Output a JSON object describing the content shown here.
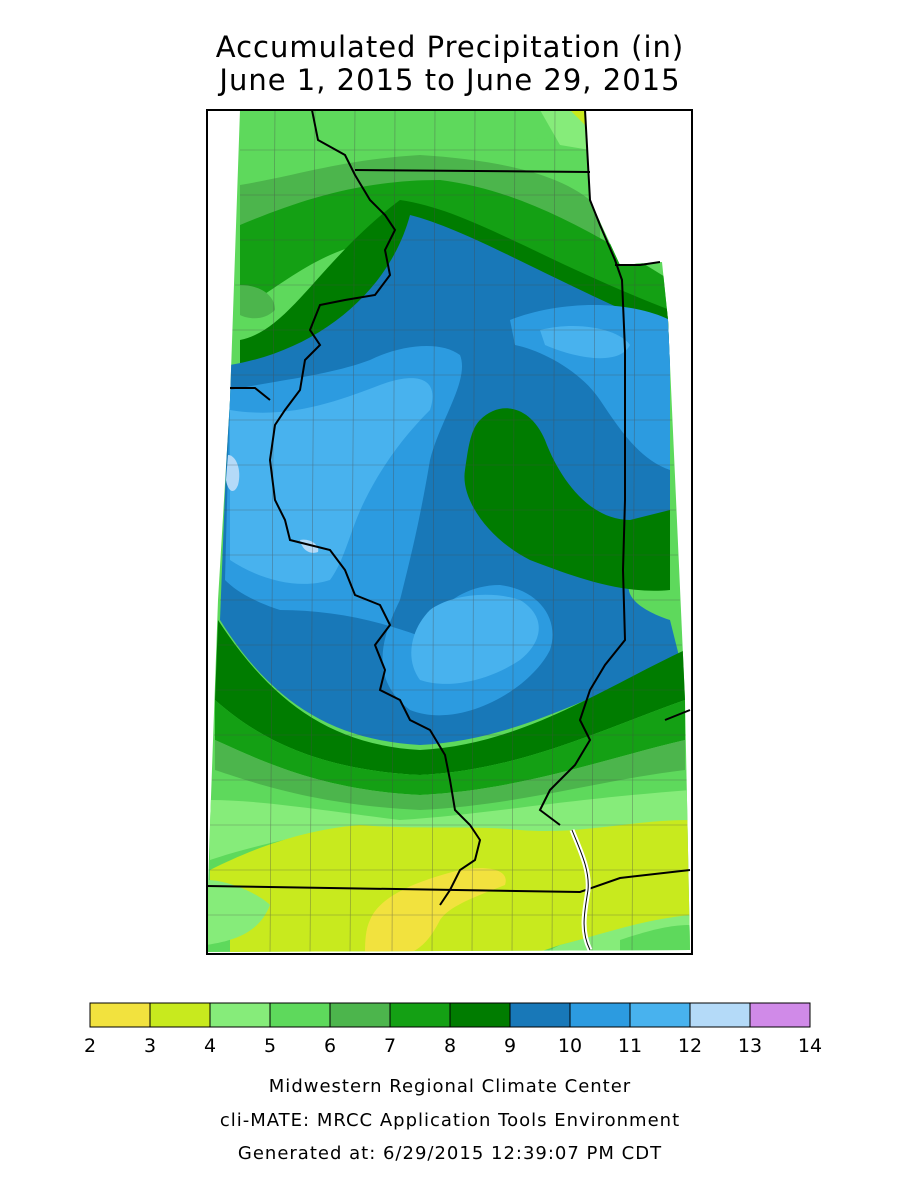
{
  "title": {
    "line1": "Accumulated Precipitation (in)",
    "line2": "June 1, 2015 to June 29, 2015"
  },
  "legend": {
    "ticks": [
      "2",
      "3",
      "4",
      "5",
      "6",
      "7",
      "8",
      "9",
      "10",
      "11",
      "12",
      "13",
      "14"
    ],
    "bins": [
      {
        "range": "2-3",
        "color": "#f2e23e"
      },
      {
        "range": "3-4",
        "color": "#c8ea1e"
      },
      {
        "range": "4-5",
        "color": "#86ec7a"
      },
      {
        "range": "5-6",
        "color": "#5ed95c"
      },
      {
        "range": "6-7",
        "color": "#4cb54c"
      },
      {
        "range": "7-8",
        "color": "#14a014"
      },
      {
        "range": "8-9",
        "color": "#007c00"
      },
      {
        "range": "9-10",
        "color": "#1878b8"
      },
      {
        "range": "10-11",
        "color": "#2c9be0"
      },
      {
        "range": "11-12",
        "color": "#48b2ee"
      },
      {
        "range": "12-13",
        "color": "#b4daf8"
      },
      {
        "range": "13-14",
        "color": "#d08ae8"
      }
    ]
  },
  "map": {
    "variable": "accumulated precipitation",
    "units": "in",
    "zones_north_to_south": [
      "5-7",
      "7-8",
      "8-9",
      "9-10",
      "10-11",
      "11-12",
      "12-13",
      "10-11",
      "9-10",
      "8-9",
      "7-8",
      "5-6",
      "4-5",
      "3-4",
      "2-3"
    ]
  },
  "credits": {
    "line1": "Midwestern Regional Climate Center",
    "line2": "cli-MATE: MRCC Application Tools Environment",
    "line3": "Generated at: 6/29/2015 12:39:07 PM CDT"
  }
}
